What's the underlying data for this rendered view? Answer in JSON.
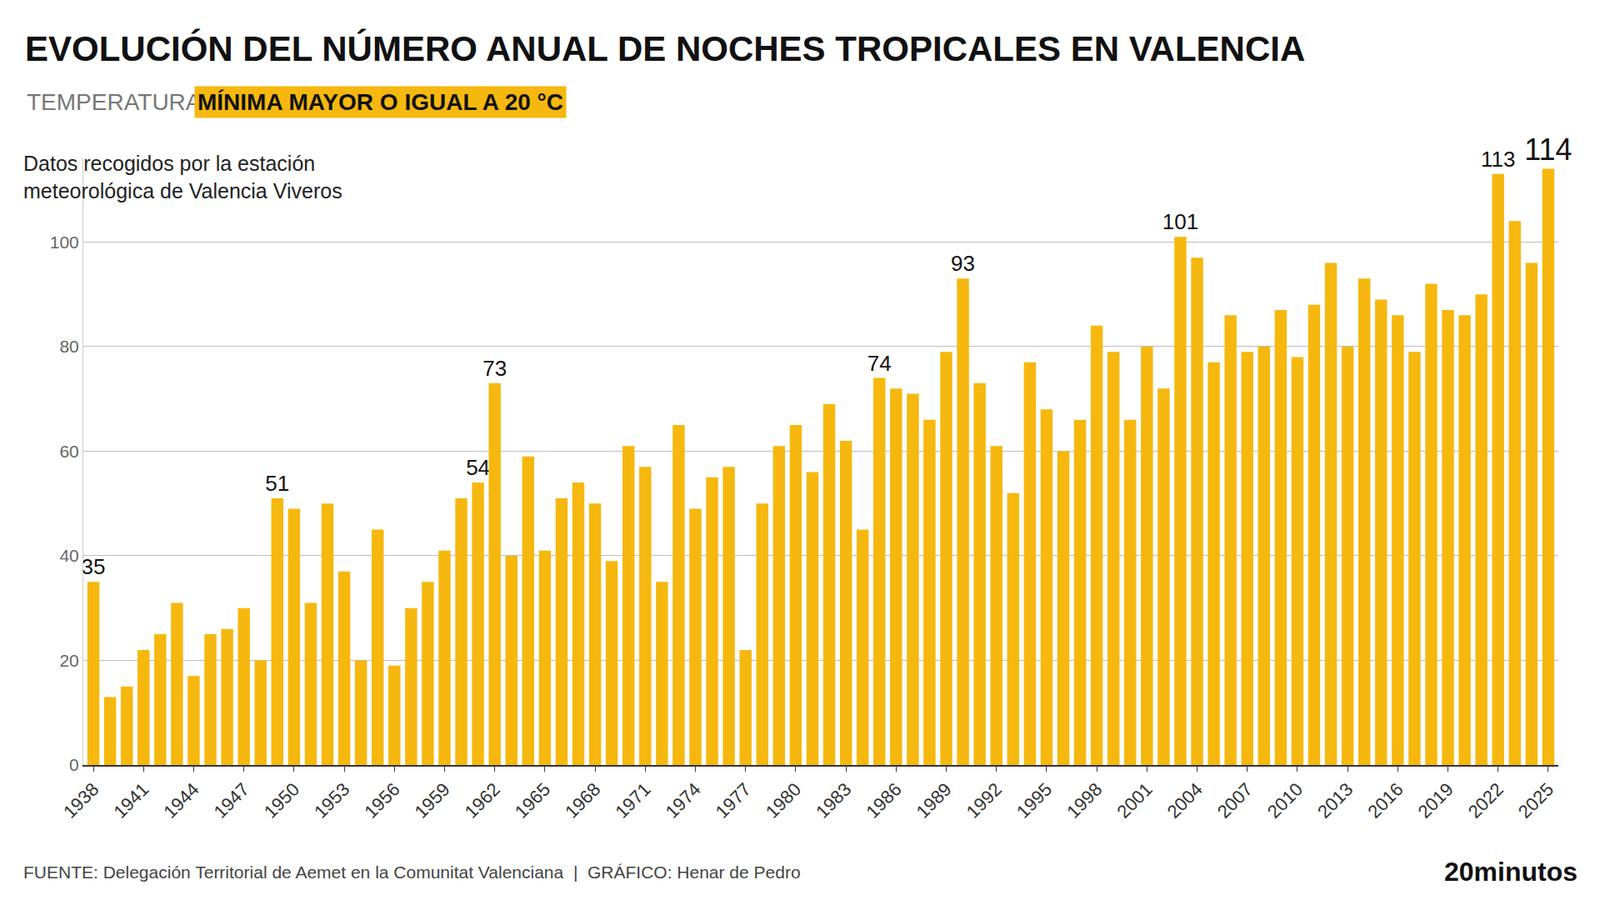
{
  "chart_data": {
    "type": "bar",
    "title": "EVOLUCIÓN DEL NÚMERO ANUAL DE NOCHES TROPICALES EN VALENCIA",
    "subtitle": "TEMPERATURA",
    "subtitle_highlight": "MÍNIMA MAYOR O IGUAL A 20 °C",
    "note": [
      "Datos recogidos por la estación",
      "meteorológica de Valencia Viveros"
    ],
    "source": "FUENTE: Delegación Territorial de Aemet en la Comunitat Valenciana  |  GRÁFICO: Henar de Pedro",
    "brand": "20minutos",
    "categories": [
      "1938",
      null,
      null,
      "1941",
      null,
      null,
      "1944",
      null,
      null,
      "1947",
      null,
      null,
      "1950",
      null,
      null,
      "1953",
      null,
      null,
      "1956",
      null,
      null,
      "1959",
      null,
      null,
      "1962",
      null,
      null,
      "1965",
      null,
      null,
      "1968",
      null,
      null,
      "1971",
      null,
      null,
      "1974",
      null,
      null,
      "1977",
      null,
      null,
      "1980",
      null,
      null,
      "1983",
      null,
      null,
      "1986",
      null,
      null,
      "1989",
      null,
      null,
      "1992",
      null,
      null,
      "1995",
      null,
      null,
      "1998",
      null,
      null,
      "2001",
      null,
      null,
      "2004",
      null,
      null,
      "2007",
      null,
      null,
      "2010",
      null,
      null,
      "2013",
      null,
      null,
      "2016",
      null,
      null,
      "2019",
      null,
      null,
      "2022",
      null,
      null,
      "2025"
    ],
    "values": [
      35,
      13,
      15,
      22,
      25,
      31,
      17,
      25,
      26,
      30,
      20,
      51,
      49,
      31,
      50,
      37,
      20,
      45,
      19,
      30,
      35,
      41,
      51,
      54,
      73,
      40,
      59,
      41,
      51,
      54,
      50,
      39,
      61,
      57,
      35,
      65,
      49,
      55,
      57,
      22,
      50,
      61,
      65,
      56,
      69,
      62,
      45,
      74,
      72,
      71,
      66,
      79,
      93,
      73,
      61,
      52,
      77,
      68,
      60,
      66,
      84,
      79,
      66,
      80,
      72,
      101,
      97,
      77,
      86,
      79,
      80,
      87,
      78,
      88,
      96,
      80,
      93,
      89,
      86,
      79,
      92,
      87,
      86,
      90,
      113,
      104,
      96,
      114
    ],
    "value_labels": [
      "35",
      null,
      null,
      null,
      null,
      null,
      null,
      null,
      null,
      null,
      null,
      "51",
      null,
      null,
      null,
      null,
      null,
      null,
      null,
      null,
      null,
      null,
      null,
      "54",
      "73",
      null,
      null,
      null,
      null,
      null,
      null,
      null,
      null,
      null,
      null,
      null,
      null,
      null,
      null,
      null,
      null,
      null,
      null,
      null,
      null,
      null,
      null,
      "74",
      null,
      null,
      null,
      null,
      "93",
      null,
      null,
      null,
      null,
      null,
      null,
      null,
      null,
      null,
      null,
      null,
      null,
      "101",
      null,
      null,
      null,
      null,
      null,
      null,
      null,
      null,
      null,
      null,
      null,
      null,
      null,
      null,
      null,
      null,
      null,
      null,
      "113",
      null,
      null,
      "114"
    ],
    "color": "#f6b80e",
    "ylim": [
      0,
      116
    ],
    "yticks": [
      0,
      20,
      40,
      60,
      80,
      100
    ],
    "grid": true
  }
}
